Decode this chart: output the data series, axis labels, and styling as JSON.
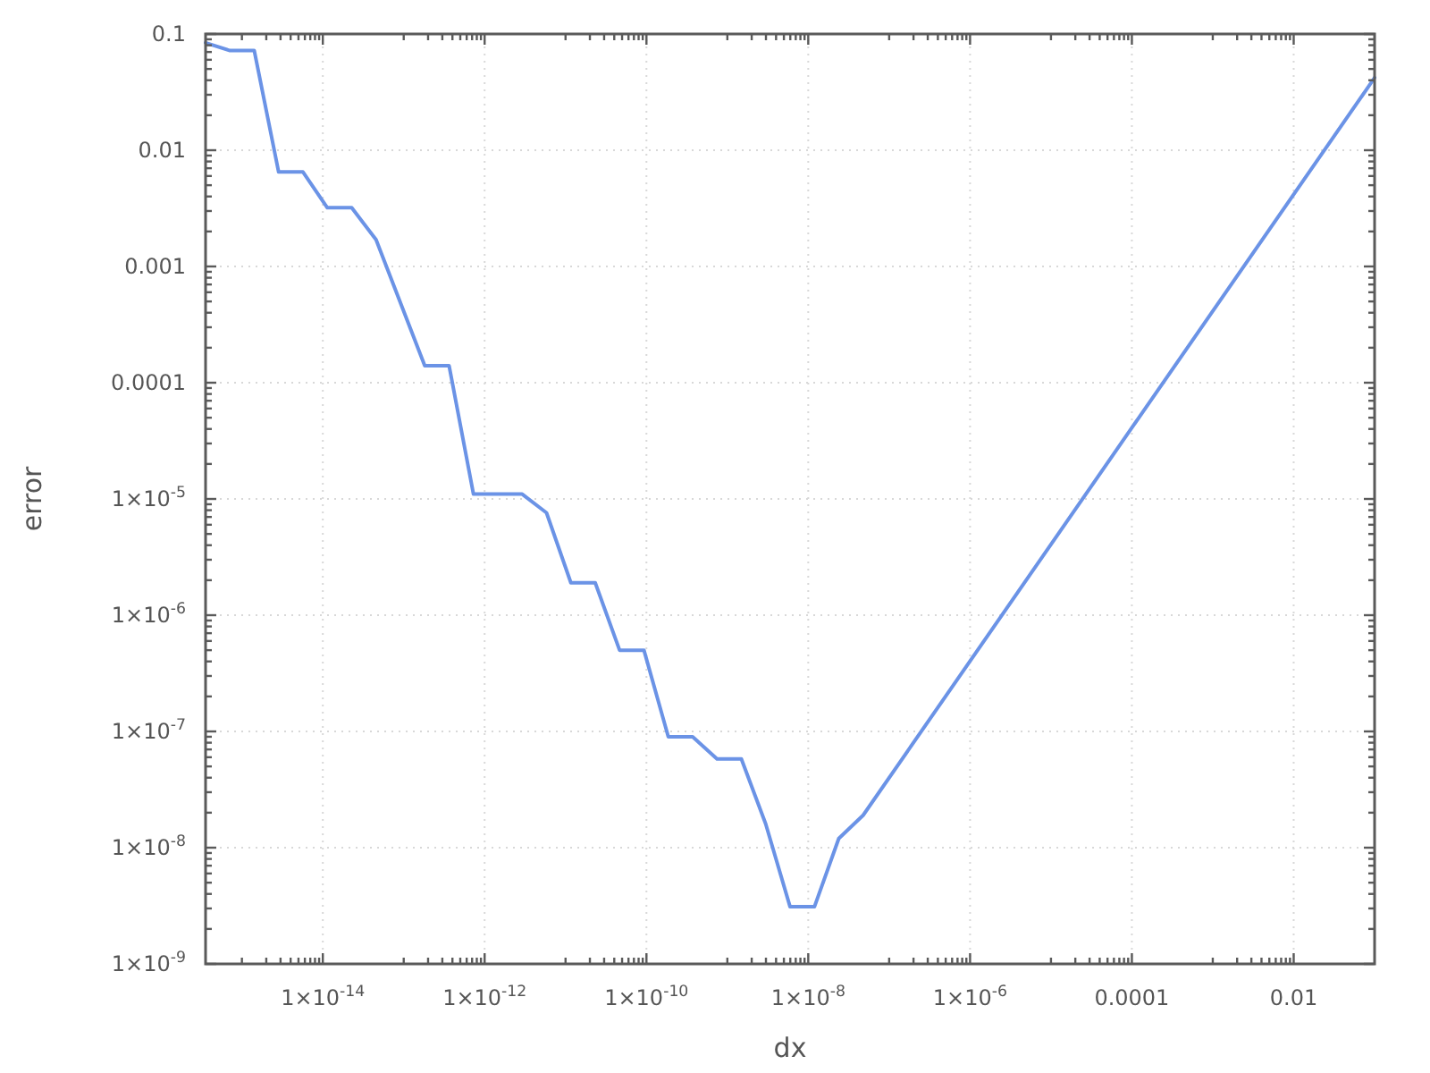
{
  "chart_data": {
    "type": "line",
    "xlabel": "dx",
    "ylabel": "error",
    "log": "xy",
    "grid": true,
    "color": "#6b93e6",
    "x": [
      3.553e-16,
      7.105e-16,
      1.421e-15,
      2.842e-15,
      5.684e-15,
      1.137e-14,
      2.274e-14,
      4.547e-14,
      1.819e-13,
      3.638e-13,
      7.276e-13,
      2.91e-12,
      5.82e-12,
      1.164e-11,
      2.328e-11,
      4.657e-11,
      9.313e-11,
      1.863e-10,
      3.725e-10,
      7.45e-10,
      1.49e-09,
      2.98e-09,
      5.96e-09,
      1.192e-08,
      2.384e-08,
      4.768e-08,
      0.1
    ],
    "values": [
      0.084,
      0.072,
      0.072,
      0.0065,
      0.0065,
      0.0032,
      0.0032,
      0.0017,
      0.00014,
      0.00014,
      1.1e-05,
      1.1e-05,
      7.6e-06,
      1.9e-06,
      1.9e-06,
      5e-07,
      5e-07,
      9e-08,
      9e-08,
      5.8e-08,
      5.8e-08,
      1.6e-08,
      3.1e-09,
      3.1e-09,
      1.2e-08,
      1.9e-08,
      0.042
    ],
    "xlim": [
      3.553e-16,
      0.1
    ],
    "ylim": [
      1e-09,
      0.1
    ],
    "xticks": [
      {
        "value": 1e-15,
        "label": null
      },
      {
        "value": 2e-15,
        "label": null
      },
      {
        "value": 3e-15,
        "label": null
      },
      {
        "value": 4e-15,
        "label": null
      },
      {
        "value": 5e-15,
        "label": null
      },
      {
        "value": 6e-15,
        "label": null
      },
      {
        "value": 7e-15,
        "label": null
      },
      {
        "value": 8e-15,
        "label": null
      },
      {
        "value": 9e-15,
        "label": null
      },
      {
        "value": 1e-14,
        "label": "1×10$^{-14}$"
      },
      {
        "value": 1e-13,
        "label": null
      },
      {
        "value": 2e-13,
        "label": null
      },
      {
        "value": 3e-13,
        "label": null
      },
      {
        "value": 4e-13,
        "label": null
      },
      {
        "value": 5e-13,
        "label": null
      },
      {
        "value": 6e-13,
        "label": null
      },
      {
        "value": 7e-13,
        "label": null
      },
      {
        "value": 8e-13,
        "label": null
      },
      {
        "value": 9e-13,
        "label": null
      },
      {
        "value": 1e-12,
        "label": "1×10$^{-12}$"
      },
      {
        "value": 1e-11,
        "label": null
      },
      {
        "value": 2e-11,
        "label": null
      },
      {
        "value": 3e-11,
        "label": null
      },
      {
        "value": 4e-11,
        "label": null
      },
      {
        "value": 5e-11,
        "label": null
      },
      {
        "value": 6e-11,
        "label": null
      },
      {
        "value": 7e-11,
        "label": null
      },
      {
        "value": 8e-11,
        "label": null
      },
      {
        "value": 9e-11,
        "label": null
      },
      {
        "value": 1e-10,
        "label": "1×10$^{-10}$"
      },
      {
        "value": 1e-09,
        "label": null
      },
      {
        "value": 2e-09,
        "label": null
      },
      {
        "value": 3e-09,
        "label": null
      },
      {
        "value": 4e-09,
        "label": null
      },
      {
        "value": 5e-09,
        "label": null
      },
      {
        "value": 6e-09,
        "label": null
      },
      {
        "value": 7e-09,
        "label": null
      },
      {
        "value": 8e-09,
        "label": null
      },
      {
        "value": 9e-09,
        "label": null
      },
      {
        "value": 1e-08,
        "label": "1×10$^{-8}$"
      },
      {
        "value": 1e-07,
        "label": null
      },
      {
        "value": 2e-07,
        "label": null
      },
      {
        "value": 3e-07,
        "label": null
      },
      {
        "value": 4e-07,
        "label": null
      },
      {
        "value": 5e-07,
        "label": null
      },
      {
        "value": 6e-07,
        "label": null
      },
      {
        "value": 7e-07,
        "label": null
      },
      {
        "value": 8e-07,
        "label": null
      },
      {
        "value": 9e-07,
        "label": null
      },
      {
        "value": 1e-06,
        "label": "1×10$^{-6}$"
      },
      {
        "value": 1e-05,
        "label": null
      },
      {
        "value": 2e-05,
        "label": null
      },
      {
        "value": 3e-05,
        "label": null
      },
      {
        "value": 4e-05,
        "label": null
      },
      {
        "value": 5e-05,
        "label": null
      },
      {
        "value": 6e-05,
        "label": null
      },
      {
        "value": 7e-05,
        "label": null
      },
      {
        "value": 8e-05,
        "label": null
      },
      {
        "value": 9e-05,
        "label": null
      },
      0.0001,
      {
        "value": 0.001,
        "label": null
      },
      {
        "value": 0.002,
        "label": null
      },
      {
        "value": 0.003,
        "label": null
      },
      {
        "value": 0.004,
        "label": null
      },
      {
        "value": 0.005,
        "label": null
      },
      {
        "value": 0.006,
        "label": null
      },
      {
        "value": 0.007,
        "label": null
      },
      {
        "value": 0.008,
        "label": null
      },
      {
        "value": 0.009,
        "label": null
      },
      0.01
    ],
    "yticks": [
      {
        "value": 1e-09,
        "label": "1×10$^{-9}$"
      },
      {
        "value": 2e-09,
        "label": null
      },
      {
        "value": 3e-09,
        "label": null
      },
      {
        "value": 4e-09,
        "label": null
      },
      {
        "value": 5e-09,
        "label": null
      },
      {
        "value": 6e-09,
        "label": null
      },
      {
        "value": 7e-09,
        "label": null
      },
      {
        "value": 8e-09,
        "label": null
      },
      {
        "value": 9e-09,
        "label": null
      },
      {
        "value": 1e-08,
        "label": "1×10$^{-8}$"
      },
      {
        "value": 2e-08,
        "label": null
      },
      {
        "value": 3e-08,
        "label": null
      },
      {
        "value": 4e-08,
        "label": null
      },
      {
        "value": 5e-08,
        "label": null
      },
      {
        "value": 6e-08,
        "label": null
      },
      {
        "value": 7e-08,
        "label": null
      },
      {
        "value": 8e-08,
        "label": null
      },
      {
        "value": 9e-08,
        "label": null
      },
      {
        "value": 1e-07,
        "label": "1×10$^{-7}$"
      },
      {
        "value": 2e-07,
        "label": null
      },
      {
        "value": 3e-07,
        "label": null
      },
      {
        "value": 4e-07,
        "label": null
      },
      {
        "value": 5e-07,
        "label": null
      },
      {
        "value": 6e-07,
        "label": null
      },
      {
        "value": 7e-07,
        "label": null
      },
      {
        "value": 8e-07,
        "label": null
      },
      {
        "value": 9e-07,
        "label": null
      },
      {
        "value": 1e-06,
        "label": "1×10$^{-6}$"
      },
      {
        "value": 2e-06,
        "label": null
      },
      {
        "value": 3e-06,
        "label": null
      },
      {
        "value": 4e-06,
        "label": null
      },
      {
        "value": 5e-06,
        "label": null
      },
      {
        "value": 6e-06,
        "label": null
      },
      {
        "value": 7e-06,
        "label": null
      },
      {
        "value": 8e-06,
        "label": null
      },
      {
        "value": 9e-06,
        "label": null
      },
      {
        "value": 1e-05,
        "label": "1×10$^{-5}$"
      },
      {
        "value": 2e-05,
        "label": null
      },
      {
        "value": 3e-05,
        "label": null
      },
      {
        "value": 4e-05,
        "label": null
      },
      {
        "value": 5e-05,
        "label": null
      },
      {
        "value": 6e-05,
        "label": null
      },
      {
        "value": 7e-05,
        "label": null
      },
      {
        "value": 8e-05,
        "label": null
      },
      {
        "value": 9e-05,
        "label": null
      },
      0.0001,
      {
        "value": 0.0002,
        "label": null
      },
      {
        "value": 0.0003,
        "label": null
      },
      {
        "value": 0.0004,
        "label": null
      },
      {
        "value": 0.0005,
        "label": null
      },
      {
        "value": 0.0006,
        "label": null
      },
      {
        "value": 0.0007,
        "label": null
      },
      {
        "value": 0.0008,
        "label": null
      },
      {
        "value": 0.0009,
        "label": null
      },
      0.001,
      {
        "value": 0.002,
        "label": null
      },
      {
        "value": 0.003,
        "label": null
      },
      {
        "value": 0.004,
        "label": null
      },
      {
        "value": 0.005,
        "label": null
      },
      {
        "value": 0.006,
        "label": null
      },
      {
        "value": 0.007,
        "label": null
      },
      {
        "value": 0.008,
        "label": null
      },
      {
        "value": 0.009,
        "label": null
      },
      0.01,
      {
        "value": 0.02,
        "label": null
      },
      {
        "value": 0.03,
        "label": null
      },
      {
        "value": 0.04,
        "label": null
      },
      {
        "value": 0.05,
        "label": null
      },
      {
        "value": 0.06,
        "label": null
      },
      {
        "value": 0.07,
        "label": null
      },
      {
        "value": 0.08,
        "label": null
      },
      {
        "value": 0.09,
        "label": null
      },
      0.1
    ]
  }
}
